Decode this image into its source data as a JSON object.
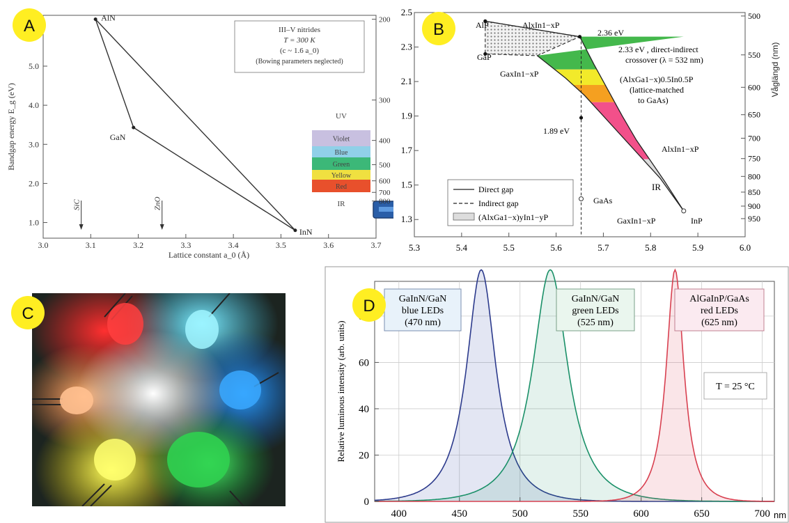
{
  "badges": {
    "a": "A",
    "b": "B",
    "c": "C",
    "d": "D"
  },
  "panel_a": {
    "ylabel": "Bandgap energy E_g (eV)",
    "xlabel": "Lattice constant a_0 (Å)",
    "infobox": [
      "III–V nitrides",
      "T = 300 K",
      "(c ~ 1.6 a_0)",
      "(Bowing parameters neglected)"
    ],
    "points": [
      {
        "label": "AlN",
        "x": 3.11,
        "y": 6.2
      },
      {
        "label": "GaN",
        "x": 3.19,
        "y": 3.43
      },
      {
        "label": "InN",
        "x": 3.53,
        "y": 0.8
      }
    ],
    "substrates": [
      {
        "label": "SiC",
        "x": 3.08
      },
      {
        "label": "ZnO",
        "x": 3.25
      }
    ],
    "xticks": [
      "3.0",
      "3.1",
      "3.2",
      "3.3",
      "3.4",
      "3.5",
      "3.6",
      "3.7"
    ],
    "yticks": [
      "1.0",
      "2.0",
      "3.0",
      "4.0",
      "5.0"
    ],
    "right_ticks": [
      "200",
      "300",
      "400",
      "500",
      "600",
      "700",
      "800"
    ],
    "uv_label": "UV",
    "ir_label": "IR",
    "bands": [
      {
        "label": "Violet",
        "color": "#c8c0e0"
      },
      {
        "label": "Blue",
        "color": "#90d0e8"
      },
      {
        "label": "Green",
        "color": "#3cb878"
      },
      {
        "label": "Yellow",
        "color": "#f0e040"
      },
      {
        "label": "Red",
        "color": "#e8502c"
      }
    ]
  },
  "panel_b": {
    "right_axis_label": "Våglängd (nm)",
    "xticks": [
      "5.3",
      "5.4",
      "5.5",
      "5.6",
      "5.7",
      "5.8",
      "5.9",
      "6.0"
    ],
    "yticks": [
      "1.3",
      "1.5",
      "1.7",
      "1.9",
      "2.1",
      "2.3",
      "2.5"
    ],
    "right_ticks": [
      "500",
      "550",
      "600",
      "650",
      "700",
      "750",
      "800",
      "850",
      "900",
      "950"
    ],
    "labels": {
      "alp": "AlP",
      "gap": "GaP",
      "alinp_top": "AlxIn1−xP",
      "gainp": "GaxIn1−xP",
      "e236": "2.36 eV",
      "crossover1": "2.33 eV , direct-indirect",
      "crossover2": "crossover (λ = 532 nm)",
      "alga1": "(AlxGa1−x)0.5In0.5P",
      "alga2": "(lattice-matched",
      "alga3": "to GaAs)",
      "e189": "1.89 eV",
      "alinp_bot": "AlxIn1−xP",
      "ir": "IR",
      "gaas": "GaAs",
      "gainp_bot": "GaxIn1−xP",
      "inp": "InP"
    },
    "legend": [
      "Direct gap",
      "Indirect gap",
      "(AlxGa1−x)yIn1−yP"
    ]
  },
  "panel_d": {
    "ylabel": "Relative luminous intensity (arb. units)",
    "xunit": "nm",
    "temp": "T = 25 °C",
    "xticks": [
      "400",
      "450",
      "500",
      "550",
      "600",
      "650",
      "700"
    ],
    "yticks": [
      "0",
      "20",
      "40",
      "60",
      "80"
    ],
    "boxes": [
      {
        "lines": [
          "GaInN/GaN",
          "blue LEDs",
          "(470 nm)"
        ]
      },
      {
        "lines": [
          "GaInN/GaN",
          "green LEDs",
          "(525 nm)"
        ]
      },
      {
        "lines": [
          "AlGaInP/GaAs",
          "red LEDs",
          "(625 nm)"
        ]
      }
    ]
  },
  "chart_data": [
    {
      "type": "line",
      "xlabel": "Lattice constant a_0 (Å)",
      "ylabel": "Bandgap energy E_g (eV)",
      "xlim": [
        3.0,
        3.7
      ],
      "ylim": [
        0.6,
        6.3
      ],
      "series": [
        {
          "name": "III–V nitrides",
          "x": [
            3.11,
            3.19,
            3.53,
            3.11
          ],
          "y": [
            6.2,
            3.43,
            0.8,
            6.2
          ]
        }
      ]
    },
    {
      "type": "area",
      "xlim": [
        5.3,
        6.0
      ],
      "ylim": [
        1.2,
        2.5
      ],
      "series": [
        {
          "name": "(AlxGa1−x)yIn1−yP",
          "x": [
            5.45,
            5.65,
            5.87,
            5.56,
            5.45
          ],
          "y": [
            2.45,
            2.36,
            1.35,
            2.25,
            2.26
          ]
        }
      ]
    },
    {
      "type": "line",
      "xlabel": "nm",
      "ylabel": "Relative luminous intensity (arb. units)",
      "xlim": [
        380,
        710
      ],
      "ylim": [
        0,
        100
      ],
      "series": [
        {
          "name": "GaInN/GaN blue LEDs (470 nm)",
          "peak": 468,
          "fwhm": 30,
          "max": 100
        },
        {
          "name": "GaInN/GaN green LEDs (525 nm)",
          "peak": 525,
          "fwhm": 36,
          "max": 100
        },
        {
          "name": "AlGaInP/GaAs red LEDs (625 nm)",
          "peak": 628,
          "fwhm": 18,
          "max": 100
        }
      ]
    }
  ]
}
